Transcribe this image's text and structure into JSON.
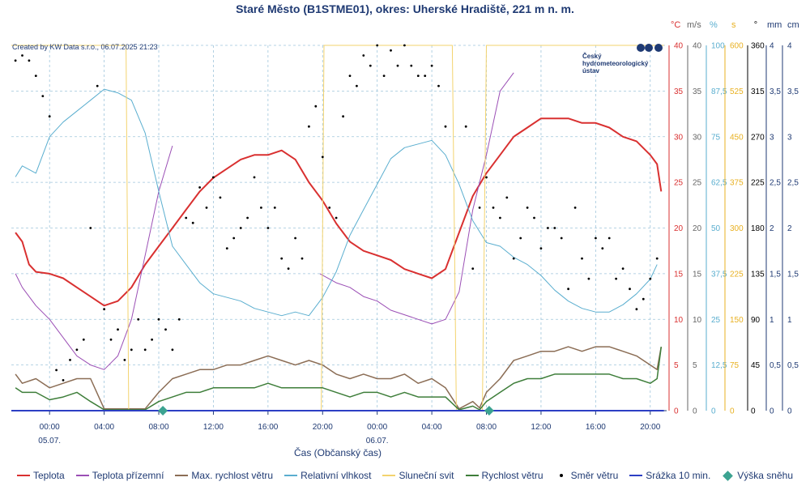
{
  "chart_data": {
    "type": "line",
    "title": "Staré Město (B1STME01), okres: Uherské Hradiště, 221 m n. m.",
    "credit": "Created by KW Data s.r.o., 06.07.2025 21:23",
    "logo_text": [
      "Český",
      "hydrometeorologický",
      "ústav"
    ],
    "xlabel": "Čas (Občanský čas)",
    "x_unit": "hours since 05.07. 00:00",
    "xlim": [
      -2.8,
      45.2
    ],
    "x_ticks": [
      {
        "x": 0,
        "label": "00:00",
        "date": "05.07."
      },
      {
        "x": 4,
        "label": "04:00",
        "date": ""
      },
      {
        "x": 8,
        "label": "08:00",
        "date": ""
      },
      {
        "x": 12,
        "label": "12:00",
        "date": ""
      },
      {
        "x": 16,
        "label": "16:00",
        "date": ""
      },
      {
        "x": 20,
        "label": "20:00",
        "date": ""
      },
      {
        "x": 24,
        "label": "00:00",
        "date": "06.07."
      },
      {
        "x": 28,
        "label": "04:00",
        "date": ""
      },
      {
        "x": 32,
        "label": "08:00",
        "date": ""
      },
      {
        "x": 36,
        "label": "12:00",
        "date": ""
      },
      {
        "x": 40,
        "label": "16:00",
        "date": ""
      },
      {
        "x": 44,
        "label": "20:00",
        "date": ""
      }
    ],
    "axes": [
      {
        "id": "temp",
        "unit": "°C",
        "color": "#d93030",
        "min": 0,
        "max": 40,
        "ticks": [
          "0",
          "5",
          "10",
          "15",
          "20",
          "25",
          "30",
          "35",
          "40"
        ]
      },
      {
        "id": "wind",
        "unit": "m/s",
        "color": "#666666",
        "min": 0,
        "max": 40,
        "ticks": [
          "0",
          "5",
          "10",
          "15",
          "20",
          "25",
          "30",
          "35",
          "40"
        ]
      },
      {
        "id": "hum",
        "unit": "%",
        "color": "#5aaecf",
        "min": 0,
        "max": 100,
        "ticks": [
          "0",
          "12,5",
          "25",
          "37,5",
          "50",
          "62,5",
          "75",
          "87,5",
          "100"
        ]
      },
      {
        "id": "sun",
        "unit": "s",
        "color": "#e8b020",
        "min": 0,
        "max": 600,
        "ticks": [
          "0",
          "75",
          "150",
          "225",
          "300",
          "375",
          "450",
          "525",
          "600"
        ]
      },
      {
        "id": "dir",
        "unit": "°",
        "color": "#000000",
        "min": 0,
        "max": 360,
        "ticks": [
          "0",
          "45",
          "90",
          "135",
          "180",
          "225",
          "270",
          "315",
          "360"
        ]
      },
      {
        "id": "prec",
        "unit": "mm",
        "color": "#1f3a73",
        "min": 0,
        "max": 4,
        "ticks": [
          "0",
          "0,5",
          "1",
          "1,5",
          "2",
          "2,5",
          "3",
          "3,5",
          "4"
        ]
      },
      {
        "id": "snow",
        "unit": "cm",
        "color": "#1f3a73",
        "min": 0,
        "max": 4,
        "ticks": [
          "0",
          "0,5",
          "1",
          "1,5",
          "2",
          "2,5",
          "3",
          "3,5",
          "4"
        ]
      }
    ],
    "series": [
      {
        "name": "Teplota",
        "axis": "temp",
        "color": "#d93030",
        "width": 2,
        "style": "line",
        "x": [
          -2.5,
          -2,
          -1.5,
          -1,
          0,
          1,
          2,
          3,
          4,
          5,
          6,
          7,
          8,
          9,
          10,
          11,
          12,
          13,
          14,
          15,
          16,
          17,
          18,
          19,
          20,
          21,
          22,
          23,
          24,
          25,
          26,
          27,
          28,
          29,
          30,
          31,
          32,
          33,
          34,
          35,
          36,
          37,
          38,
          39,
          40,
          41,
          42,
          43,
          44,
          44.5,
          44.8
        ],
        "y": [
          19.5,
          18.5,
          16,
          15.2,
          15,
          14.5,
          13.5,
          12.5,
          11.5,
          12,
          13.5,
          16,
          18,
          20,
          22,
          24,
          25.5,
          26.5,
          27.5,
          28,
          28,
          28.5,
          27.5,
          25,
          23,
          20.5,
          18.5,
          17.5,
          17,
          16.5,
          15.5,
          15,
          14.5,
          15.5,
          19.5,
          23.5,
          26,
          28,
          30,
          31,
          32,
          32,
          32,
          31.5,
          31.5,
          31,
          30,
          29.5,
          28,
          27,
          24
        ]
      },
      {
        "name": "Teplota přízemní",
        "axis": "temp",
        "color": "#9b4fb5",
        "width": 1,
        "style": "line",
        "x": [
          -2.5,
          -2,
          -1,
          0,
          1,
          2,
          3,
          4,
          5,
          6,
          7,
          8,
          9
        ],
        "y": [
          15,
          13.5,
          11.5,
          10,
          8,
          6,
          5,
          4.5,
          6,
          10,
          17,
          24,
          29
        ]
      },
      {
        "name": "Teplota přízemní 2",
        "axis": "temp",
        "color": "#9b4fb5",
        "width": 1,
        "style": "line",
        "x": [
          19.8,
          21,
          22,
          23,
          24,
          25,
          26,
          27,
          28,
          29,
          30,
          31,
          31.5,
          32,
          33,
          34
        ],
        "y": [
          15,
          14,
          13.5,
          12.5,
          12,
          11,
          10.5,
          10,
          9.5,
          10,
          13,
          22,
          25,
          28,
          35,
          37
        ]
      },
      {
        "name": "Max. rychlost větru",
        "axis": "wind",
        "color": "#8b6d55",
        "width": 1.5,
        "style": "line",
        "x": [
          -2.5,
          -2,
          -1,
          0,
          1,
          2,
          3,
          4,
          5,
          6,
          7,
          8,
          9,
          10,
          11,
          12,
          13,
          14,
          15,
          16,
          17,
          18,
          19,
          20,
          21,
          22,
          23,
          24,
          25,
          26,
          27,
          28,
          29,
          30,
          31,
          31.5,
          32,
          33,
          34,
          35,
          36,
          37,
          38,
          39,
          40,
          41,
          42,
          43,
          44,
          44.5,
          44.8
        ],
        "y": [
          4,
          3,
          3.5,
          2.5,
          3,
          3.5,
          3.5,
          0.2,
          0.2,
          0.2,
          0.2,
          2,
          3.5,
          4,
          4.5,
          4.5,
          5,
          5,
          5.5,
          6,
          5.5,
          5,
          5.5,
          5,
          4,
          3.5,
          4,
          3.5,
          3.5,
          4,
          3,
          3.5,
          2.5,
          0.2,
          1,
          0.3,
          2,
          3.5,
          5.5,
          6,
          6.5,
          6.5,
          7,
          6.5,
          7,
          7,
          6.5,
          6,
          5,
          4.5,
          7
        ]
      },
      {
        "name": "Relativní vlhkost",
        "axis": "hum",
        "color": "#5aaecf",
        "width": 1,
        "style": "line",
        "x": [
          -2.5,
          -2,
          -1,
          0,
          1,
          2,
          3,
          4,
          5,
          6,
          7,
          8,
          9,
          10,
          11,
          12,
          13,
          14,
          15,
          16,
          17,
          18,
          19,
          20,
          21,
          22,
          23,
          24,
          25,
          26,
          27,
          28,
          29,
          30,
          31,
          32,
          33,
          34,
          35,
          36,
          37,
          38,
          39,
          40,
          41,
          42,
          43,
          44,
          44.5
        ],
        "y": [
          64,
          67,
          65,
          75,
          79,
          82,
          85,
          88,
          87,
          85,
          76,
          60,
          45,
          40,
          35,
          32,
          31,
          30,
          28,
          27,
          26,
          27,
          26,
          31,
          38,
          48,
          55,
          62,
          69,
          72,
          73,
          74,
          70,
          62,
          52,
          46,
          45,
          42,
          40,
          37,
          33,
          30,
          28,
          27,
          27,
          29,
          32,
          36,
          40
        ]
      },
      {
        "name": "Sluneční svit",
        "axis": "sun",
        "color": "#f3d36e",
        "width": 1,
        "style": "line",
        "x": [
          -2.8,
          5.6,
          5.8,
          19.9,
          20.1,
          29.5,
          29.8,
          31.7,
          32,
          45
        ],
        "y": [
          600,
          600,
          0,
          0,
          600,
          600,
          0,
          0,
          600,
          600
        ]
      },
      {
        "name": "Rychlost větru",
        "axis": "wind",
        "color": "#3e7e3a",
        "width": 1.5,
        "style": "line",
        "x": [
          -2.5,
          -2,
          -1,
          0,
          1,
          2,
          3,
          4,
          5,
          6,
          7,
          8,
          9,
          10,
          11,
          12,
          13,
          14,
          15,
          16,
          17,
          18,
          19,
          20,
          21,
          22,
          23,
          24,
          25,
          26,
          27,
          28,
          29,
          30,
          31,
          31.5,
          32,
          33,
          34,
          35,
          36,
          37,
          38,
          39,
          40,
          41,
          42,
          43,
          44,
          44.5,
          44.8
        ],
        "y": [
          2.5,
          2,
          2,
          1.2,
          1.5,
          2,
          1,
          0.1,
          0.1,
          0.1,
          0.1,
          1,
          1.5,
          2,
          2,
          2.5,
          2.5,
          2.5,
          2.5,
          3,
          2.5,
          2.5,
          2.5,
          2.5,
          2,
          1.5,
          2,
          2,
          1.5,
          2,
          1.5,
          1.5,
          1.5,
          0.1,
          0.5,
          0.1,
          1,
          2,
          3,
          3.5,
          3.5,
          4,
          4,
          4,
          4,
          4,
          3.5,
          3.5,
          3,
          3.5,
          7
        ]
      },
      {
        "name": "Směr větru",
        "axis": "dir",
        "color": "#000000",
        "style": "dots",
        "x": [
          -2.5,
          -2,
          -1.5,
          -1,
          -0.5,
          0,
          0.5,
          1,
          1.5,
          2,
          2.5,
          3,
          3.5,
          4,
          4.5,
          5,
          5.5,
          6,
          6.5,
          7,
          7.5,
          8,
          8.5,
          9,
          9.5,
          10,
          10.5,
          11,
          11.5,
          12,
          12.5,
          13,
          13.5,
          14,
          14.5,
          15,
          15.5,
          16,
          16.5,
          17,
          17.5,
          18,
          18.5,
          19,
          19.5,
          20,
          20.5,
          21,
          21.5,
          22,
          22.5,
          23,
          23.5,
          24,
          24.5,
          25,
          25.5,
          26,
          26.5,
          27,
          27.5,
          28,
          28.5,
          29,
          30.5,
          31,
          31.5,
          32,
          32.5,
          33,
          33.5,
          34,
          34.5,
          35,
          35.5,
          36,
          36.5,
          37,
          37.5,
          38,
          38.5,
          39,
          39.5,
          40,
          40.5,
          41,
          41.5,
          42,
          42.5,
          43,
          43.5,
          44,
          44.5
        ],
        "y": [
          345,
          350,
          345,
          330,
          310,
          290,
          40,
          30,
          50,
          60,
          70,
          180,
          320,
          100,
          70,
          80,
          50,
          60,
          90,
          60,
          70,
          90,
          80,
          60,
          90,
          190,
          185,
          220,
          200,
          230,
          210,
          160,
          170,
          180,
          190,
          230,
          200,
          180,
          200,
          150,
          140,
          170,
          150,
          280,
          300,
          250,
          200,
          190,
          290,
          330,
          320,
          350,
          340,
          360,
          330,
          355,
          340,
          360,
          340,
          330,
          330,
          340,
          320,
          280,
          280,
          140,
          200,
          230,
          200,
          190,
          210,
          150,
          170,
          200,
          190,
          160,
          180,
          180,
          170,
          120,
          200,
          150,
          130,
          170,
          160,
          170,
          130,
          140,
          120,
          100,
          110,
          130,
          150
        ]
      },
      {
        "name": "Srážka 10 min.",
        "axis": "prec",
        "color": "#2c3fc4",
        "width": 2,
        "style": "line",
        "x": [
          -2.8,
          45
        ],
        "y": [
          0,
          0
        ]
      },
      {
        "name": "Výška sněhu",
        "axis": "snow",
        "color": "#3ca391",
        "style": "markers",
        "x": [
          8.3,
          32.2
        ],
        "y": [
          0,
          0
        ]
      }
    ]
  },
  "legend": [
    {
      "label": "Teplota",
      "color": "#d93030",
      "kind": "line"
    },
    {
      "label": "Teplota přízemní",
      "color": "#9b4fb5",
      "kind": "line"
    },
    {
      "label": "Max. rychlost větru",
      "color": "#8b6d55",
      "kind": "line"
    },
    {
      "label": "Relativní vlhkost",
      "color": "#5aaecf",
      "kind": "line"
    },
    {
      "label": "Sluneční svit",
      "color": "#f3d36e",
      "kind": "line"
    },
    {
      "label": "Rychlost větru",
      "color": "#3e7e3a",
      "kind": "line"
    },
    {
      "label": "Směr větru",
      "color": "#000000",
      "kind": "dot"
    },
    {
      "label": "Srážka 10 min.",
      "color": "#2c3fc4",
      "kind": "line"
    },
    {
      "label": "Výška sněhu",
      "color": "#3ca391",
      "kind": "diamond"
    }
  ]
}
